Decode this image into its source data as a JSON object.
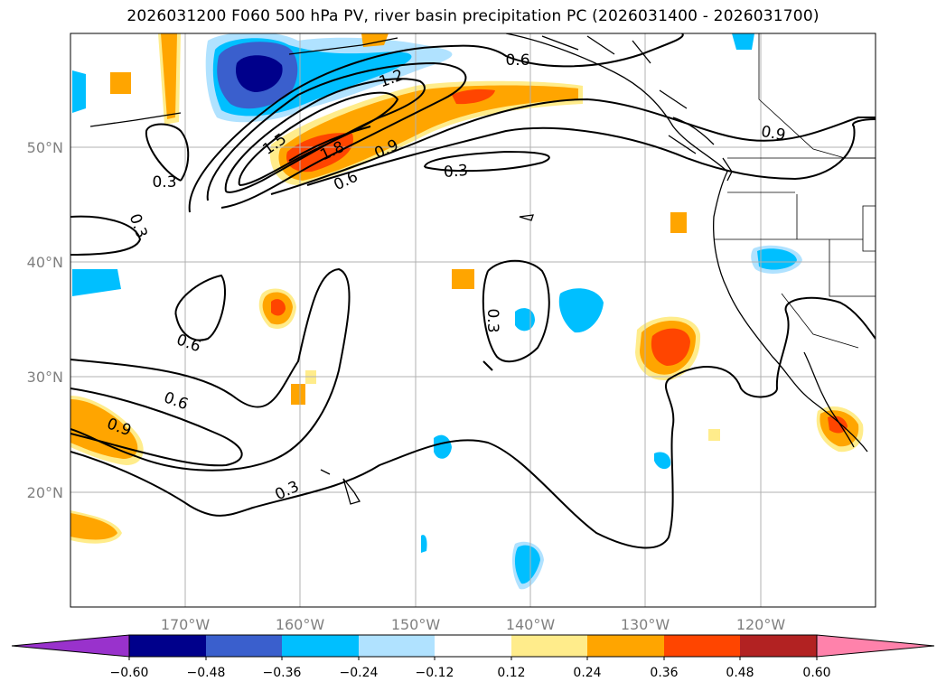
{
  "title": "2026031200 F060 500 hPa PV, river basin precipitation PC (2026031400 - 2026031700)",
  "map": {
    "lat_ticks": [
      "50°N",
      "40°N",
      "30°N",
      "20°N"
    ],
    "lon_ticks": [
      "170°W",
      "160°W",
      "150°W",
      "140°W",
      "130°W",
      "120°W"
    ],
    "gridlines": true
  },
  "contour_labels": [
    "0.6",
    "1.2",
    "1.5",
    "1.8",
    "0.9",
    "0.6",
    "0.3",
    "0.9",
    "0.3",
    "0.3",
    "0.3",
    "0.6",
    "0.6",
    "0.9",
    "0.3"
  ],
  "colorbar": {
    "ticks": [
      "−0.60",
      "−0.48",
      "−0.36",
      "−0.24",
      "−0.12",
      "0.12",
      "0.24",
      "0.36",
      "0.48",
      "0.60"
    ],
    "colors": [
      "#9932cc",
      "#00008b",
      "#3a5fcd",
      "#00bfff",
      "#b0e2ff",
      "#ffffff",
      "#ffec8b",
      "#ffa500",
      "#ff4500",
      "#b22222",
      "#ff82ab"
    ]
  }
}
